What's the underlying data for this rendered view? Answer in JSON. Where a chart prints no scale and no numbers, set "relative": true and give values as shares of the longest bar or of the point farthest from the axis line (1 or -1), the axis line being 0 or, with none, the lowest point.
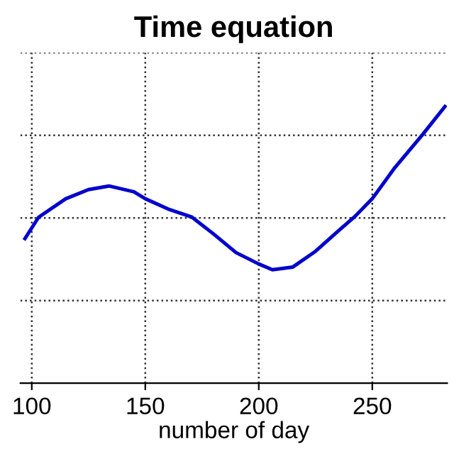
{
  "chart_data": {
    "type": "line",
    "title": "Time equation",
    "xlabel": "number of day",
    "relative": true,
    "xlim": [
      95,
      283
    ],
    "xticks": [
      100,
      150,
      200,
      250
    ],
    "grid": true,
    "line_style": "solid",
    "series": [
      {
        "color": "#0000cc",
        "x": [
          97,
          103,
          115,
          125,
          134,
          145,
          150,
          160,
          170.6,
          180,
          190,
          200,
          206,
          215,
          225,
          235,
          242,
          250,
          260,
          272,
          282
        ],
        "values": [
          0.523,
          0.6,
          0.667,
          0.7,
          0.713,
          0.692,
          0.667,
          0.63,
          0.6,
          0.54,
          0.472,
          0.431,
          0.41,
          0.42,
          0.477,
          0.55,
          0.6,
          0.667,
          0.78,
          0.897,
          1.0
        ]
      }
    ]
  }
}
